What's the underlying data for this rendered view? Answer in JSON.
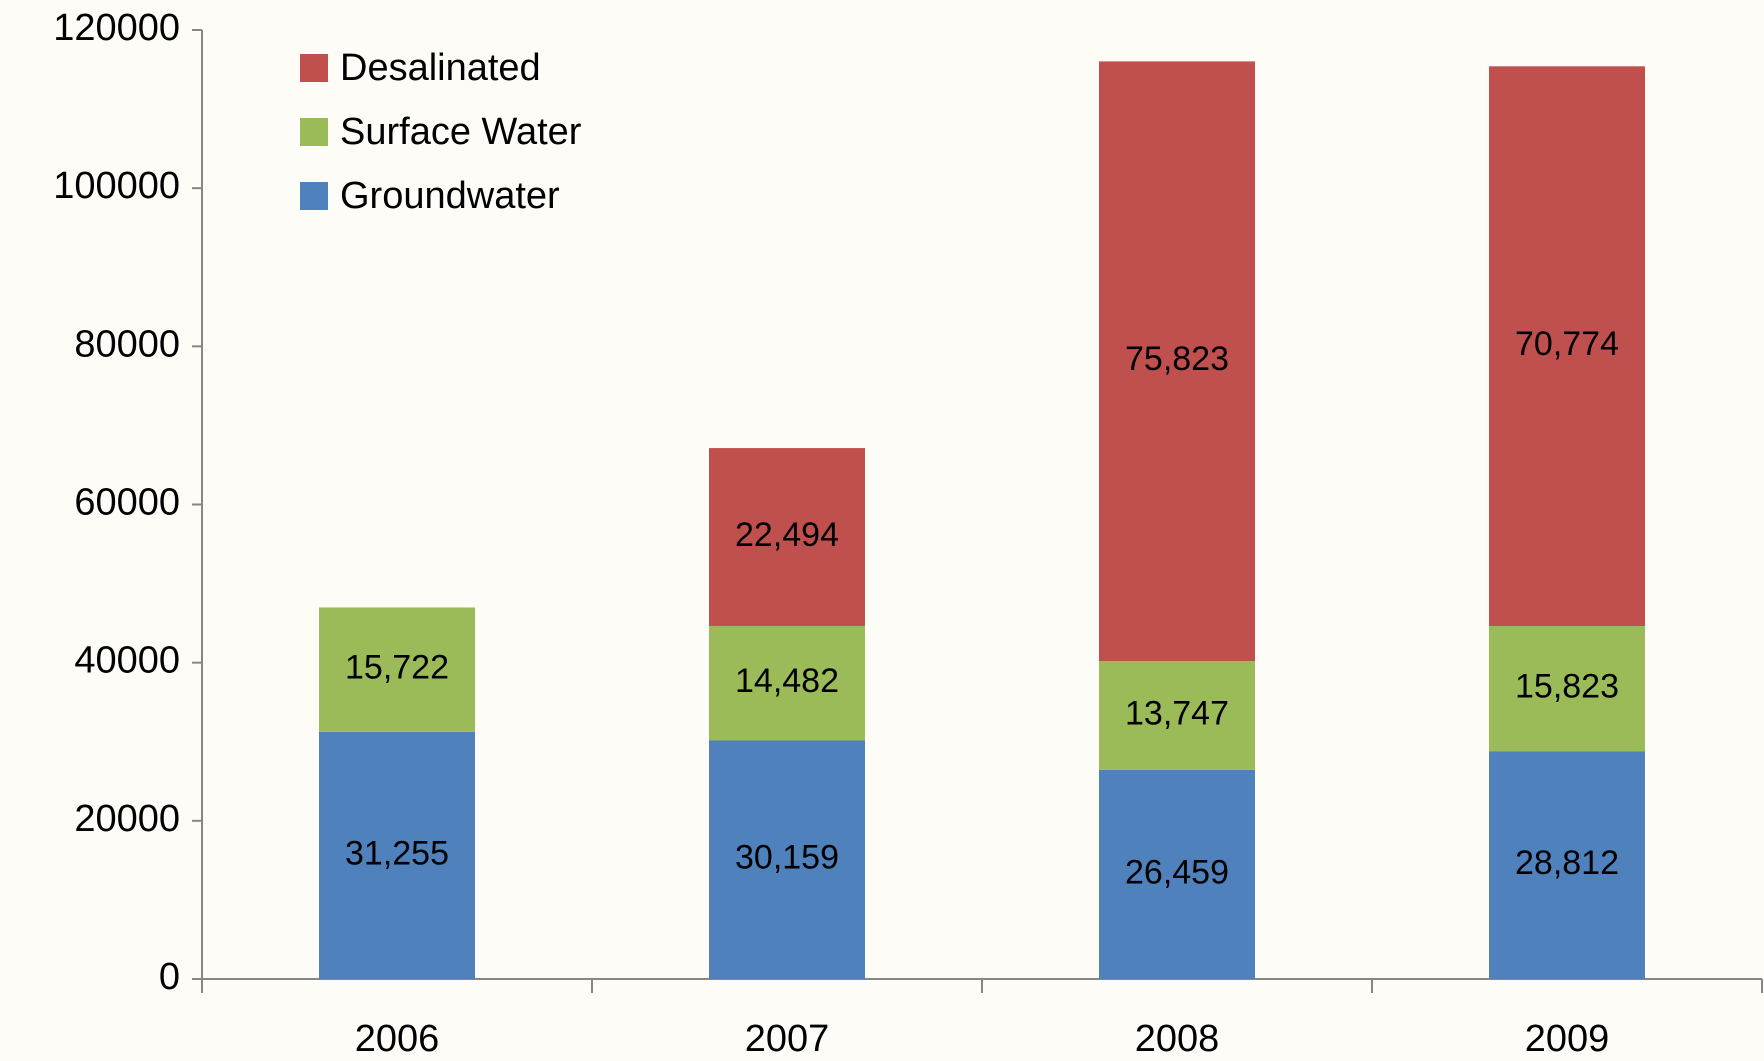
{
  "chart_data": {
    "type": "stacked_bar",
    "categories": [
      "2006",
      "2007",
      "2008",
      "2009"
    ],
    "series": [
      {
        "name": "Groundwater",
        "color": "#4f81bd",
        "values": [
          31255,
          30159,
          26459,
          28812
        ],
        "value_labels": [
          "31,255",
          "30,159",
          "26,459",
          "28,812"
        ]
      },
      {
        "name": "Surface Water",
        "color": "#9bbb59",
        "values": [
          15722,
          14482,
          13747,
          15823
        ],
        "value_labels": [
          "15,722",
          "14,482",
          "13,747",
          "15,823"
        ]
      },
      {
        "name": "Desalinated",
        "color": "#c0504d",
        "values": [
          null,
          22494,
          75823,
          70774
        ],
        "value_labels": [
          null,
          "22,494",
          "75,823",
          "70,774"
        ]
      }
    ],
    "ylim": [
      0,
      120000
    ],
    "yticks": [
      0,
      20000,
      40000,
      60000,
      80000,
      100000,
      120000
    ],
    "legend": "top-left",
    "grid": false
  }
}
